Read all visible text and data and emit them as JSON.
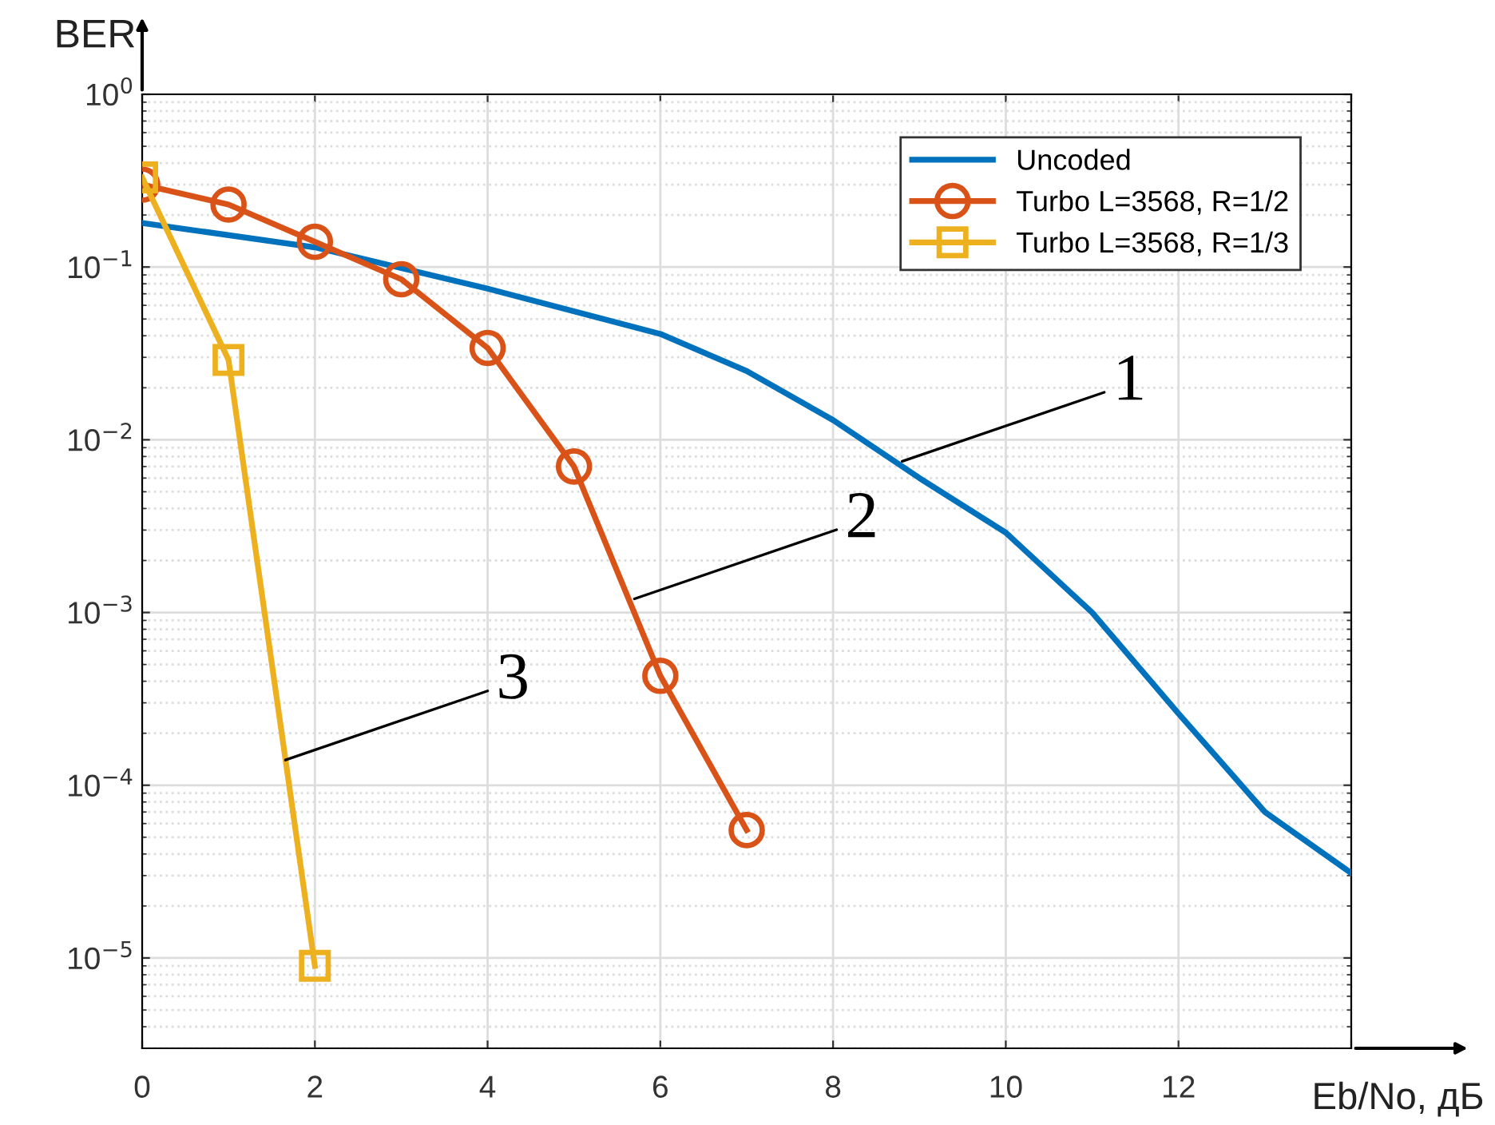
{
  "chart_data": {
    "type": "line",
    "xlabel": "Eb/No, дБ",
    "ylabel": "BER",
    "log": "y",
    "grid": true,
    "legend": "top right",
    "xlim": [
      0,
      14
    ],
    "xticks": [
      0,
      2,
      4,
      6,
      8,
      10,
      12,
      {
        "value": 14,
        "label": null
      }
    ],
    "ylim": [
      3e-06,
      1
    ],
    "yticks": [
      {
        "value": 1,
        "label": "10$^{0}$"
      },
      {
        "value": 0.1,
        "label": "10$^{−1}$"
      },
      {
        "value": 0.01,
        "label": "10$^{−2}$"
      },
      {
        "value": 0.001,
        "label": "10$^{−3}$"
      },
      {
        "value": 0.0001,
        "label": "10$^{−4}$"
      },
      {
        "value": 1e-05,
        "label": "10$^{−5}$"
      }
    ],
    "series": [
      {
        "name": "Uncoded",
        "color": "#0072bd",
        "marker": "none",
        "x": [
          0,
          2,
          4,
          6,
          7,
          8,
          9,
          10,
          11,
          12,
          13,
          14
        ],
        "values": [
          0.18,
          0.13,
          0.075,
          0.041,
          0.025,
          0.013,
          0.006,
          0.0029,
          0.001,
          0.00026,
          7e-05,
          3.1e-05
        ]
      },
      {
        "name": "Turbo L=3568, R=1/2",
        "color": "#d95319",
        "marker": "circle",
        "x": [
          0,
          1,
          2,
          3,
          4,
          5,
          6,
          7
        ],
        "values": [
          0.3,
          0.23,
          0.14,
          0.085,
          0.034,
          0.007,
          0.00043,
          5.5e-05
        ]
      },
      {
        "name": "Turbo L=3568, R=1/3",
        "color": "#edb120",
        "marker": "square",
        "x": [
          0,
          1,
          2
        ],
        "values": [
          0.33,
          0.029,
          9e-06
        ]
      }
    ],
    "annotations": [
      {
        "text": "1",
        "x": 8.8,
        "y": 0.0075
      },
      {
        "text": "2",
        "x": 5.7,
        "y": 0.0012
      },
      {
        "text": "3",
        "x": 1.66,
        "y": 0.00014
      }
    ]
  }
}
